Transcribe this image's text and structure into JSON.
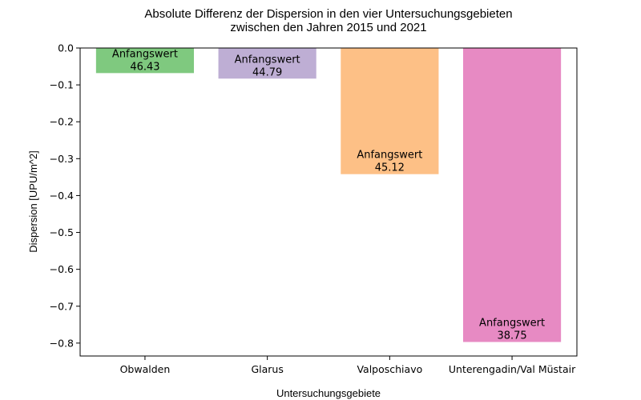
{
  "chart_data": {
    "type": "bar",
    "title": [
      "Absolute Differenz der Dispersion in den vier Untersuchungsgebieten",
      "zwischen den Jahren 2015 und 2021"
    ],
    "xlabel": "Untersuchungsgebiete",
    "ylabel": "Dispersion [UPU/m^2]",
    "categories": [
      "Obwalden",
      "Glarus",
      "Valposchiavo",
      "Unterengadin/Val Müstair"
    ],
    "values": [
      -0.068,
      -0.083,
      -0.342,
      -0.797
    ],
    "colors": [
      "#7fc97f",
      "#beaed4",
      "#fdc086",
      "#e78ac3"
    ],
    "bar_annotation_prefix": "Anfangswert",
    "initial_values": [
      "46.43",
      "44.79",
      "45.12",
      "38.75"
    ],
    "ylim": [
      -0.835,
      0.0
    ],
    "yticks": [
      0.0,
      -0.1,
      -0.2,
      -0.3,
      -0.4,
      -0.5,
      -0.6,
      -0.7,
      -0.8
    ],
    "ytick_labels": [
      "0.0",
      "−0.1",
      "−0.2",
      "−0.3",
      "−0.4",
      "−0.5",
      "−0.6",
      "−0.7",
      "−0.8"
    ],
    "grid": false,
    "legend": "none"
  }
}
